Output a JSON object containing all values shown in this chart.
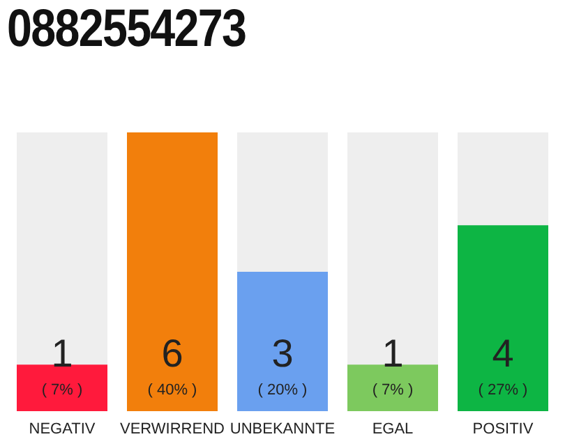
{
  "chart_data": {
    "type": "bar",
    "title": "0882554273",
    "categories": [
      "NEGATIV",
      "VERWIRREND",
      "UNBEKANNTE",
      "EGAL",
      "POSITIV"
    ],
    "values": [
      1,
      6,
      3,
      1,
      4
    ],
    "colors": [
      "#ff1a3c",
      "#f27f0c",
      "#6aa0ef",
      "#7dc95e",
      "#0db544"
    ],
    "data_labels": true,
    "annotations": [
      "( 7% )",
      "( 40% )",
      "( 20% )",
      "( 7% )",
      "( 27% )"
    ],
    "grid": false,
    "legend": false
  }
}
